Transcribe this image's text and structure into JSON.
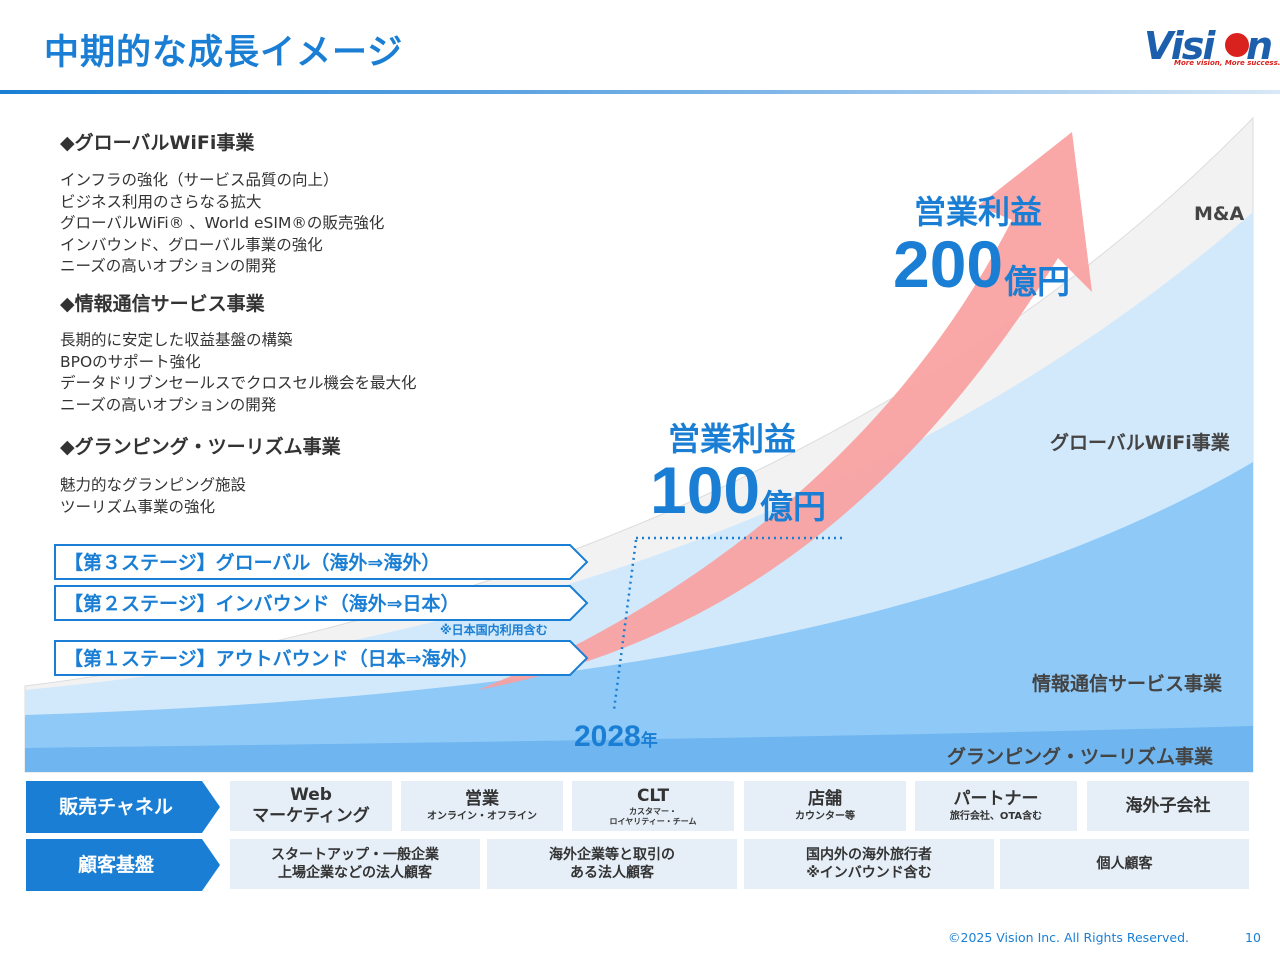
{
  "title": "中期的な成長イメージ",
  "logo": {
    "name": "Vision",
    "tagline": "More vision, More success."
  },
  "sections": [
    {
      "heading": "◆グローバルWiFi事業",
      "lines": "インフラの強化（サービス品質の向上）\nビジネス利用のさらなる拡大\nグローバルWiFi® 、World eSIM®の販売強化\nインバウンド、グローバル事業の強化\nニーズの高いオプションの開発"
    },
    {
      "heading": "◆情報通信サービス事業",
      "lines": "長期的に安定した収益基盤の構築\nBPOのサポート強化\nデータドリブンセールスでクロスセル機会を最大化\nニーズの高いオプションの開発"
    },
    {
      "heading": "◆グランピング・ツーリズム事業",
      "lines": "魅力的なグランピング施設\nツーリズム事業の強化"
    }
  ],
  "stages": [
    "【第３ステージ】グローバル（海外⇒海外）",
    "【第２ステージ】インバウンド（海外⇒日本）",
    "【第１ステージ】アウトバウンド（日本⇒海外）"
  ],
  "stage_note": "※日本国内利用含む",
  "profit_mid": {
    "label": "営業利益",
    "value": "100",
    "unit": "億円"
  },
  "profit_top": {
    "label": "営業利益",
    "value": "200",
    "unit": "億円"
  },
  "year": {
    "value": "2028",
    "unit": "年"
  },
  "segments": {
    "ma": "M&A",
    "wifi": "グローバルWiFi事業",
    "telecom": "情報通信サービス事業",
    "glamping": "グランピング・ツーリズム事業"
  },
  "channels": {
    "label": "販売チャネル",
    "items": [
      {
        "main": "Web\nマーケティング",
        "sub": ""
      },
      {
        "main": "営業",
        "sub": "オンライン・オフライン"
      },
      {
        "main": "CLT",
        "sub": "カスタマー・\nロイヤリティー・チーム"
      },
      {
        "main": "店舗",
        "sub": "カウンター等"
      },
      {
        "main": "パートナー",
        "sub": "旅行会社、OTA含む"
      },
      {
        "main": "海外子会社",
        "sub": ""
      }
    ]
  },
  "customers": {
    "label": "顧客基盤",
    "items": [
      "スタートアップ・一般企業\n上場企業などの法人顧客",
      "海外企業等と取引の\nある法人顧客",
      "国内外の海外旅行者\n※インバウンド含む",
      "個人顧客"
    ]
  },
  "footer": "©2025 Vision Inc. All Rights Reserved.",
  "page_number": "10",
  "colors": {
    "accent": "#1a7fd4",
    "arrow": "#f9a0a0",
    "dark_label": "#1a6fc4"
  }
}
